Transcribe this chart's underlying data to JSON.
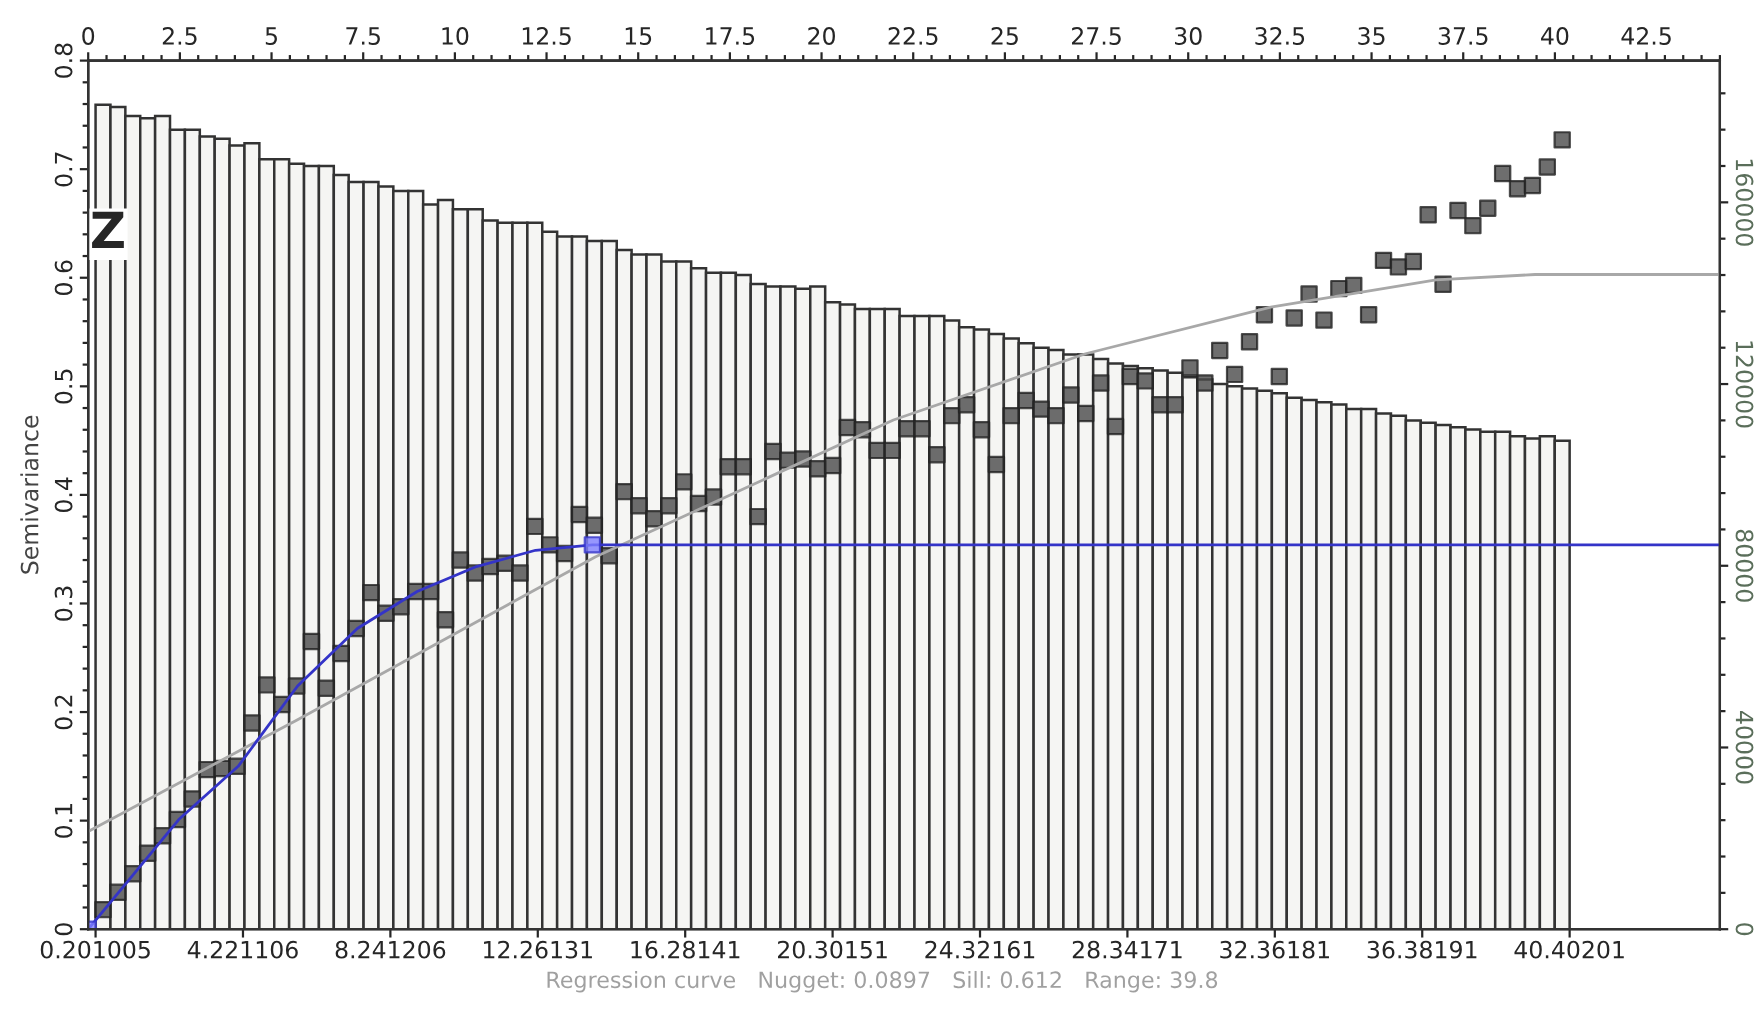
{
  "chart_data": {
    "type": "scatter",
    "ylabel": "Semivariance",
    "annotations": [
      "Z",
      "Regression curve   Nugget: 0.0897   Sill: 0.612   Range: 39.8"
    ],
    "xlim": [
      0,
      44.5
    ],
    "xticks": [
      0.201005,
      4.221106,
      8.241206,
      12.26131,
      16.28141,
      20.30151,
      24.32161,
      28.34171,
      32.36181,
      36.38191,
      40.40201
    ],
    "x2lim": [
      0,
      44.5
    ],
    "x2ticks": [
      0,
      2.5,
      5,
      7.5,
      10,
      12.5,
      15,
      17.5,
      20,
      22.5,
      25,
      27.5,
      30,
      32.5,
      35,
      37.5,
      40,
      42.5
    ],
    "ylim": [
      0,
      0.8
    ],
    "yticks": [
      0,
      0.1,
      0.2,
      0.3,
      0.4,
      0.5,
      0.6,
      0.7,
      0.8
    ],
    "y2lim": [
      0,
      191200
    ],
    "y2ticks": [
      0,
      40000,
      80000,
      120000,
      160000
    ],
    "series": [
      {
        "type": "histogram",
        "axis": "y2",
        "color": "#f5f5f3",
        "bins": [
          0.201,
          0.607,
          1.013,
          1.419,
          1.825,
          2.231,
          2.637,
          3.044,
          3.45,
          3.856,
          4.262,
          4.668,
          5.074,
          5.48,
          5.886,
          6.292,
          6.698,
          7.104,
          7.51,
          7.916,
          8.322,
          8.729,
          9.135,
          9.541,
          9.947,
          10.353,
          10.759,
          11.165,
          11.571,
          11.977,
          12.383,
          12.789,
          13.195,
          13.601,
          14.007,
          14.414,
          14.82,
          15.226,
          15.632,
          16.038,
          16.444,
          16.85,
          17.256,
          17.662,
          18.068,
          18.474,
          18.88,
          19.286,
          19.692,
          20.099,
          20.505,
          20.911,
          21.317,
          21.723,
          22.129,
          22.535,
          22.941,
          23.347,
          23.753,
          24.159,
          24.565,
          24.971,
          25.377,
          25.784,
          26.19,
          26.596,
          27.002,
          27.408,
          27.814,
          28.22,
          28.626,
          29.032,
          29.438,
          29.844,
          30.25,
          30.656,
          31.062,
          31.469,
          31.875,
          32.281,
          32.687,
          33.093,
          33.499,
          33.905,
          34.311,
          34.717,
          35.123,
          35.529,
          35.935,
          36.341,
          36.747,
          37.154,
          37.56,
          37.966,
          38.372,
          38.778,
          39.184,
          39.59,
          39.996,
          40.402
        ],
        "values": [
          181500,
          181000,
          179000,
          178500,
          179000,
          176000,
          176000,
          174500,
          174000,
          172500,
          173000,
          169500,
          169500,
          168500,
          168000,
          168000,
          166000,
          164500,
          164500,
          163500,
          162500,
          162500,
          159500,
          160500,
          158500,
          158500,
          156000,
          155500,
          155500,
          155500,
          153500,
          152500,
          152500,
          151500,
          151500,
          149500,
          148500,
          148500,
          147000,
          147000,
          145500,
          144500,
          144500,
          144000,
          142000,
          141500,
          141500,
          141000,
          141500,
          138000,
          137500,
          136500,
          136500,
          136500,
          135000,
          135000,
          135000,
          134000,
          132500,
          132000,
          131000,
          130000,
          129000,
          128000,
          127500,
          126500,
          126500,
          125500,
          124500,
          124000,
          123500,
          123000,
          122500,
          121500,
          121000,
          120000,
          119500,
          119000,
          118500,
          118000,
          117000,
          116500,
          116000,
          115500,
          114500,
          114500,
          113500,
          113000,
          112000,
          111500,
          111000,
          110500,
          110000,
          109500,
          109500,
          108500,
          108000,
          108500,
          107500
        ]
      },
      {
        "color": "#4a4a4a",
        "marker": "square",
        "x": [
          0.404,
          0.81,
          1.216,
          1.622,
          2.028,
          2.434,
          2.84,
          3.247,
          3.653,
          4.059,
          4.465,
          4.871,
          5.277,
          5.683,
          6.089,
          6.495,
          6.901,
          7.307,
          7.713,
          8.119,
          8.525,
          8.932,
          9.338,
          9.744,
          10.15,
          10.556,
          10.962,
          11.368,
          11.774,
          12.18,
          12.586,
          12.992,
          13.398,
          13.804,
          14.21,
          14.617,
          15.023,
          15.429,
          15.835,
          16.241,
          16.647,
          17.053,
          17.459,
          17.865,
          18.271,
          18.677,
          19.083,
          19.489,
          19.895,
          20.302,
          20.708,
          21.114,
          21.52,
          21.926,
          22.332,
          22.738,
          23.144,
          23.55,
          23.956,
          24.362,
          24.768,
          25.174,
          25.58,
          25.987,
          26.393,
          26.799,
          27.205,
          27.611,
          28.017,
          28.423,
          28.829,
          29.235,
          29.641,
          30.047,
          30.453,
          30.859,
          31.265,
          31.672,
          32.078,
          32.484,
          32.89,
          33.296,
          33.702,
          34.108,
          34.514,
          34.92,
          35.326,
          35.732,
          36.138,
          36.544,
          36.95,
          37.357,
          37.763,
          38.169,
          38.575,
          38.981,
          39.387,
          39.793,
          40.199
        ],
        "values": [
          0.018,
          0.034,
          0.051,
          0.07,
          0.086,
          0.101,
          0.12,
          0.147,
          0.148,
          0.15,
          0.19,
          0.225,
          0.207,
          0.224,
          0.265,
          0.222,
          0.254,
          0.277,
          0.31,
          0.291,
          0.297,
          0.311,
          0.311,
          0.285,
          0.34,
          0.328,
          0.334,
          0.337,
          0.328,
          0.371,
          0.354,
          0.346,
          0.382,
          0.372,
          0.344,
          0.403,
          0.39,
          0.378,
          0.39,
          0.412,
          0.392,
          0.398,
          0.426,
          0.426,
          0.38,
          0.44,
          0.432,
          0.433,
          0.424,
          0.427,
          0.462,
          0.46,
          0.441,
          0.441,
          0.461,
          0.461,
          0.437,
          0.473,
          0.483,
          0.46,
          0.428,
          0.473,
          0.487,
          0.479,
          0.473,
          0.492,
          0.475,
          0.503,
          0.463,
          0.509,
          0.505,
          0.483,
          0.483,
          0.517,
          0.503,
          0.533,
          0.511,
          0.541,
          0.566,
          0.509,
          0.563,
          0.585,
          0.561,
          0.59,
          0.593,
          0.566,
          0.616,
          0.61,
          0.615,
          0.658,
          0.594,
          0.662,
          0.648,
          0.664,
          0.696,
          0.682,
          0.685,
          0.702,
          0.727
        ]
      },
      {
        "type": "line",
        "color": "#a8a8a8",
        "x": [
          0,
          5.71,
          13.84,
          21.96,
          27.2,
          32.25,
          36.76,
          39.46,
          44.5
        ],
        "values": [
          0.09,
          0.193,
          0.343,
          0.469,
          0.53,
          0.573,
          0.598,
          0.603,
          0.603
        ]
      },
      {
        "type": "line",
        "color": "#3434c8",
        "x": [
          0,
          2.47,
          4.09,
          5.71,
          7.34,
          8.97,
          10.59,
          12.2,
          13.75,
          44.5
        ],
        "values": [
          0,
          0.101,
          0.15,
          0.224,
          0.277,
          0.311,
          0.334,
          0.349,
          0.354,
          0.354
        ]
      },
      {
        "color": "#8080ff",
        "marker": "square",
        "x": [
          0,
          13.75
        ],
        "values": [
          0,
          0.354
        ]
      }
    ]
  }
}
